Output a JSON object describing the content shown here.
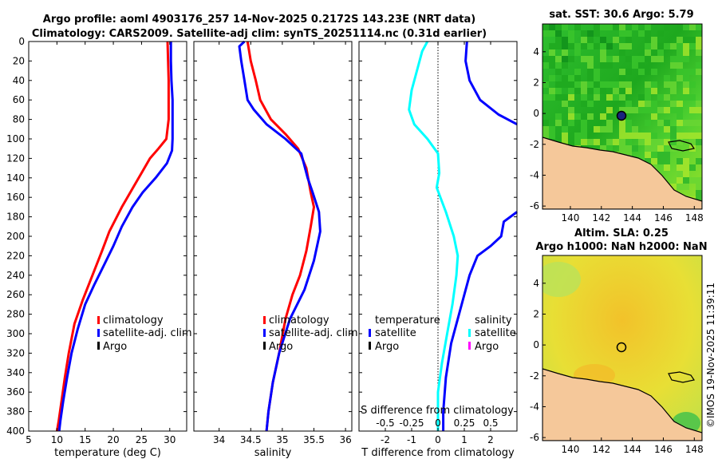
{
  "header": {
    "title_line1": "Argo profile: aoml 4903176_257 14-Nov-2025 0.2172S 143.23E (NRT data)",
    "title_line2": "Climatology: CARS2009. Satellite-adj clim: synTS_20251114.nc (0.31d earlier)"
  },
  "colors": {
    "climatology": "#ff0000",
    "satellite": "#0000ff",
    "argo": "#000000",
    "t_diff": "#00ffff",
    "argo_s_diff": "#ff00ff",
    "land": "#f5c89a"
  },
  "watermark": "©IMOS 19-Nov-2025 11:39:11",
  "chart_data": [
    {
      "type": "line",
      "name": "temperature",
      "xlabel": "temperature (deg C)",
      "ylabel": "",
      "xlim": [
        5,
        33
      ],
      "ylim": [
        0,
        400
      ],
      "xticks": [
        5,
        10,
        15,
        20,
        25,
        30
      ],
      "yticks": [
        0,
        20,
        40,
        60,
        80,
        100,
        120,
        140,
        160,
        180,
        200,
        220,
        240,
        260,
        280,
        300,
        320,
        340,
        360,
        380,
        400
      ],
      "legend": [
        "climatology",
        "satellite-adj. clim",
        "Argo"
      ],
      "series": [
        {
          "name": "climatology",
          "color": "#ff0000",
          "points": [
            [
              29.6,
              0
            ],
            [
              29.7,
              20
            ],
            [
              29.8,
              40
            ],
            [
              29.8,
              60
            ],
            [
              29.8,
              80
            ],
            [
              29.4,
              100
            ],
            [
              28.0,
              110
            ],
            [
              26.5,
              120
            ],
            [
              25.0,
              135
            ],
            [
              23.5,
              150
            ],
            [
              21.5,
              170
            ],
            [
              19.3,
              195
            ],
            [
              18.0,
              215
            ],
            [
              16.3,
              240
            ],
            [
              14.6,
              265
            ],
            [
              13.1,
              290
            ],
            [
              12.1,
              320
            ],
            [
              11.4,
              345
            ],
            [
              10.8,
              370
            ],
            [
              10.3,
              390
            ],
            [
              10.0,
              400
            ]
          ]
        },
        {
          "name": "satellite-adj. clim",
          "color": "#0000ff",
          "points": [
            [
              30.2,
              0
            ],
            [
              30.2,
              20
            ],
            [
              30.3,
              40
            ],
            [
              30.5,
              60
            ],
            [
              30.5,
              80
            ],
            [
              30.5,
              100
            ],
            [
              30.4,
              112
            ],
            [
              29.5,
              125
            ],
            [
              27.5,
              140
            ],
            [
              25.2,
              155
            ],
            [
              23.4,
              170
            ],
            [
              21.5,
              190
            ],
            [
              20.0,
              210
            ],
            [
              18.3,
              230
            ],
            [
              16.6,
              250
            ],
            [
              15.0,
              270
            ],
            [
              13.7,
              295
            ],
            [
              12.6,
              320
            ],
            [
              11.8,
              345
            ],
            [
              11.1,
              370
            ],
            [
              10.6,
              390
            ],
            [
              10.4,
              400
            ]
          ]
        }
      ]
    },
    {
      "type": "line",
      "name": "salinity",
      "xlabel": "salinity",
      "xlim": [
        33.6,
        36.1
      ],
      "ylim": [
        0,
        400
      ],
      "xticks": [
        34,
        34.5,
        35,
        35.5,
        36
      ],
      "legend": [
        "climatology",
        "satellite-adj. clim",
        "Argo"
      ],
      "series": [
        {
          "name": "climatology",
          "color": "#ff0000",
          "points": [
            [
              34.45,
              0
            ],
            [
              34.5,
              20
            ],
            [
              34.58,
              40
            ],
            [
              34.65,
              60
            ],
            [
              34.82,
              80
            ],
            [
              35.05,
              95
            ],
            [
              35.25,
              110
            ],
            [
              35.38,
              130
            ],
            [
              35.45,
              155
            ],
            [
              35.5,
              170
            ],
            [
              35.45,
              190
            ],
            [
              35.38,
              215
            ],
            [
              35.28,
              240
            ],
            [
              35.16,
              260
            ],
            [
              35.05,
              285
            ],
            [
              34.95,
              320
            ],
            [
              34.85,
              350
            ],
            [
              34.78,
              380
            ],
            [
              34.75,
              400
            ]
          ]
        },
        {
          "name": "satellite-adj. clim",
          "color": "#0000ff",
          "points": [
            [
              34.4,
              0
            ],
            [
              34.32,
              5
            ],
            [
              34.35,
              20
            ],
            [
              34.4,
              40
            ],
            [
              34.45,
              60
            ],
            [
              34.55,
              70
            ],
            [
              34.75,
              85
            ],
            [
              35.05,
              100
            ],
            [
              35.3,
              115
            ],
            [
              35.4,
              140
            ],
            [
              35.48,
              155
            ],
            [
              35.58,
              175
            ],
            [
              35.6,
              195
            ],
            [
              35.5,
              225
            ],
            [
              35.35,
              255
            ],
            [
              35.12,
              285
            ],
            [
              34.95,
              320
            ],
            [
              34.85,
              350
            ],
            [
              34.78,
              380
            ],
            [
              34.75,
              400
            ]
          ]
        }
      ]
    },
    {
      "type": "line",
      "name": "difference",
      "xlabel": "T difference from climatology",
      "xlabel_top": "S difference from climatology",
      "xlim": [
        -3,
        3
      ],
      "ylim": [
        0,
        400
      ],
      "xticks": [
        -2,
        -1,
        0,
        1,
        2
      ],
      "xticks_top": [
        "-0.5",
        "-0.25",
        "0",
        "0.25",
        "0.5"
      ],
      "legend_left_title": "temperature",
      "legend_right_title": "salinity",
      "legend_left": [
        "satellite",
        "Argo"
      ],
      "legend_right": [
        "satellite",
        "Argo"
      ],
      "series": [
        {
          "name": "temperature satellite",
          "color": "#00ffff",
          "points": [
            [
              -0.4,
              0
            ],
            [
              -0.6,
              10
            ],
            [
              -0.8,
              30
            ],
            [
              -1.0,
              50
            ],
            [
              -1.1,
              70
            ],
            [
              -0.9,
              85
            ],
            [
              -0.4,
              100
            ],
            [
              0,
              115
            ],
            [
              0.05,
              135
            ],
            [
              -0.05,
              150
            ],
            [
              0.3,
              175
            ],
            [
              0.6,
              200
            ],
            [
              0.75,
              220
            ],
            [
              0.7,
              240
            ],
            [
              0.55,
              270
            ],
            [
              0.35,
              300
            ],
            [
              0.15,
              330
            ],
            [
              0,
              360
            ],
            [
              0,
              400
            ]
          ]
        },
        {
          "name": "salinity satellite",
          "color": "#0000ff",
          "points": [
            [
              1.1,
              0
            ],
            [
              1.05,
              20
            ],
            [
              1.2,
              40
            ],
            [
              1.6,
              60
            ],
            [
              2.3,
              75
            ],
            [
              3.0,
              85
            ]
          ]
        },
        {
          "name": "salinity satellite (deep)",
          "color": "#0000ff",
          "points": [
            [
              3.0,
              175
            ],
            [
              2.5,
              185
            ],
            [
              2.4,
              200
            ],
            [
              2.0,
              210
            ],
            [
              1.5,
              220
            ],
            [
              1.2,
              240
            ],
            [
              0.9,
              270
            ],
            [
              0.5,
              310
            ],
            [
              0.3,
              345
            ],
            [
              0.2,
              380
            ],
            [
              0.2,
              400
            ]
          ]
        }
      ]
    },
    {
      "type": "heatmap",
      "name": "sst_map",
      "title": "sat. SST: 30.6 Argo: 5.79",
      "xticks": [
        140,
        142,
        144,
        146,
        148
      ],
      "yticks": [
        4,
        2,
        0,
        -2,
        -4,
        -6
      ],
      "xlim": [
        138.2,
        148.5
      ],
      "ylim": [
        -6.2,
        5.8
      ],
      "argo_position": [
        143.23,
        -0.22
      ]
    },
    {
      "type": "heatmap",
      "name": "sla_map",
      "title": "Altim. SLA: 0.25",
      "subtitle": "Argo h1000: NaN h2000: NaN",
      "xticks": [
        140,
        142,
        144,
        146,
        148
      ],
      "yticks": [
        4,
        2,
        0,
        -2,
        -4,
        -6
      ],
      "xlim": [
        138.2,
        148.5
      ],
      "ylim": [
        -6.2,
        5.8
      ],
      "argo_position": [
        143.23,
        -0.22
      ]
    }
  ]
}
